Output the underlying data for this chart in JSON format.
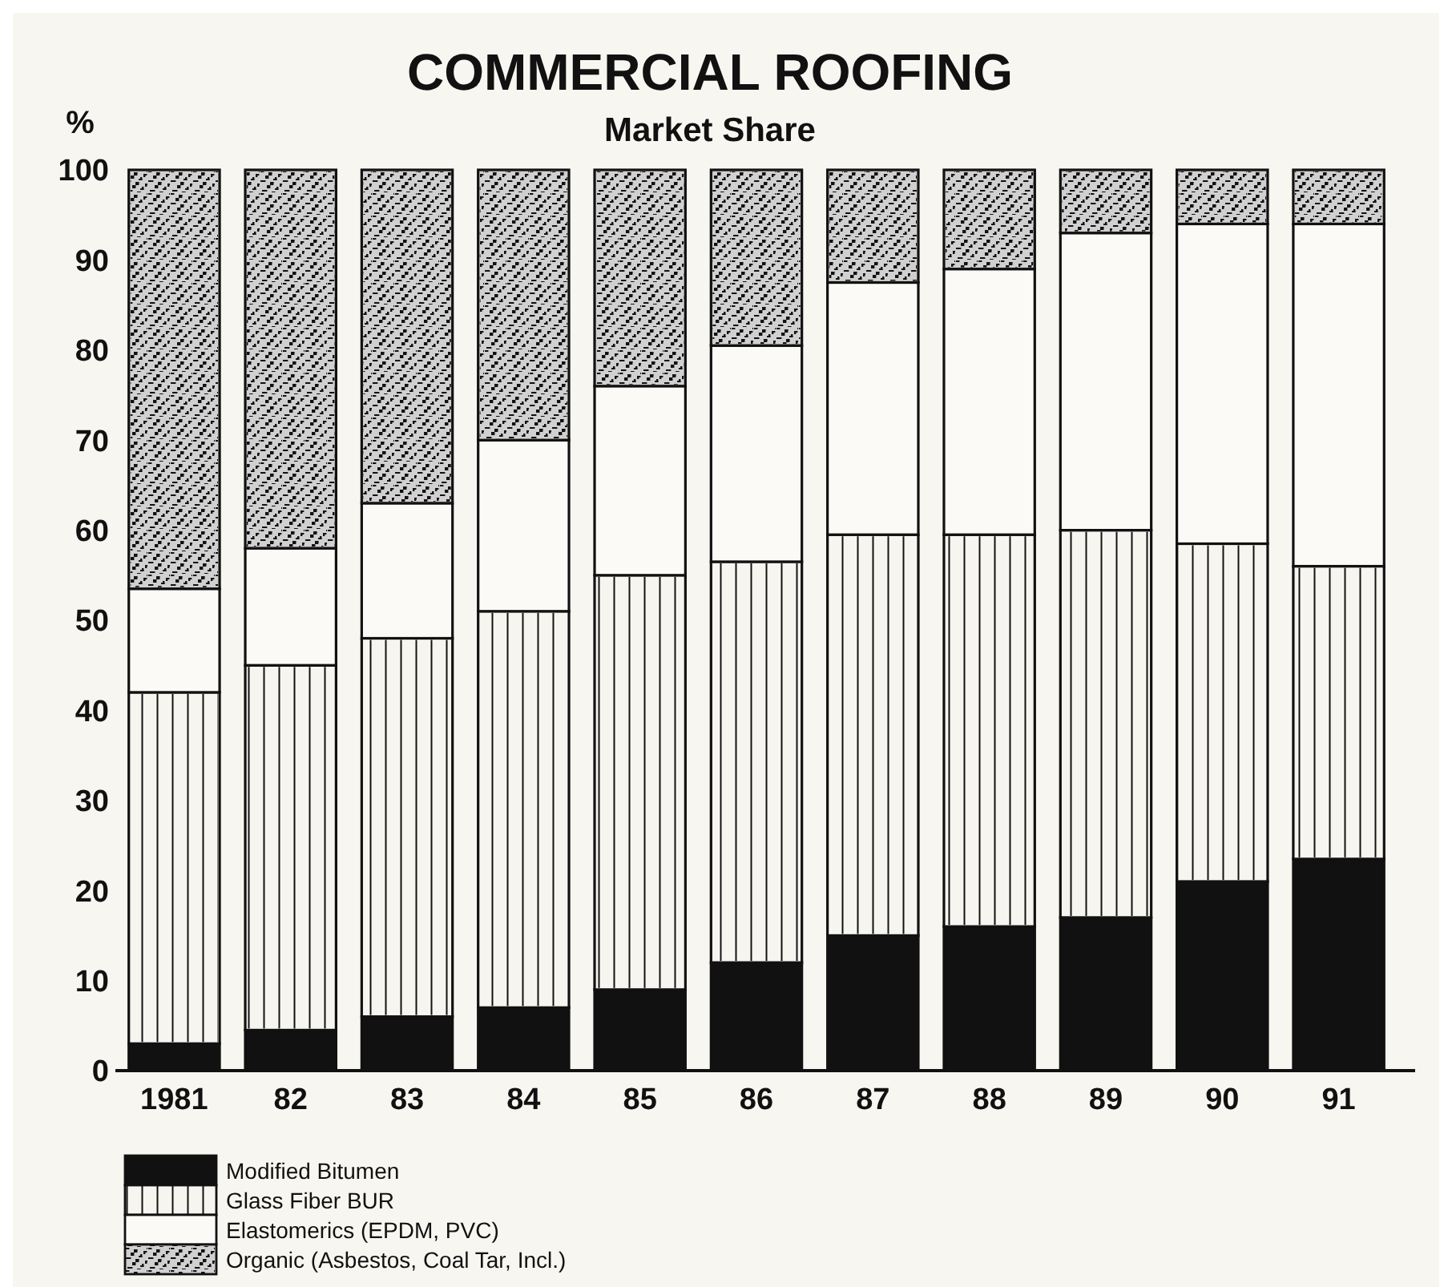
{
  "chart_data": {
    "type": "bar",
    "title": "COMMERCIAL ROOFING",
    "subtitle": "Market Share",
    "ylabel": "%",
    "stacked": true,
    "categories": [
      "1981",
      "82",
      "83",
      "84",
      "85",
      "86",
      "87",
      "88",
      "89",
      "90",
      "91"
    ],
    "series": [
      {
        "name": "Modified Bitumen",
        "color": "#111111",
        "values": [
          3,
          4.5,
          6,
          7,
          9,
          12,
          15,
          16,
          17,
          21,
          23.5
        ]
      },
      {
        "name": "Glass Fiber BUR",
        "color": "#f7f5f0",
        "values": [
          39,
          40.5,
          42,
          44,
          46,
          44.5,
          44.5,
          43.5,
          43,
          37.5,
          32.5
        ]
      },
      {
        "name": "Elastomerics (EPDM, PVC)",
        "color": "#fbfaf6",
        "values": [
          11.5,
          13,
          15,
          19,
          21,
          24,
          28,
          29.5,
          33,
          35.5,
          38
        ]
      },
      {
        "name": "Organic (Asbestos, Coal Tar, Incl.)",
        "color": "#d0d0d0",
        "values": [
          46.5,
          42,
          37,
          30,
          24,
          19.5,
          12.5,
          11,
          7,
          6,
          6
        ]
      }
    ],
    "ylim": [
      0,
      100
    ],
    "yticks": [
      0,
      10,
      20,
      30,
      40,
      50,
      60,
      70,
      80,
      90,
      100
    ],
    "grid": false,
    "legend": "bottom left"
  }
}
